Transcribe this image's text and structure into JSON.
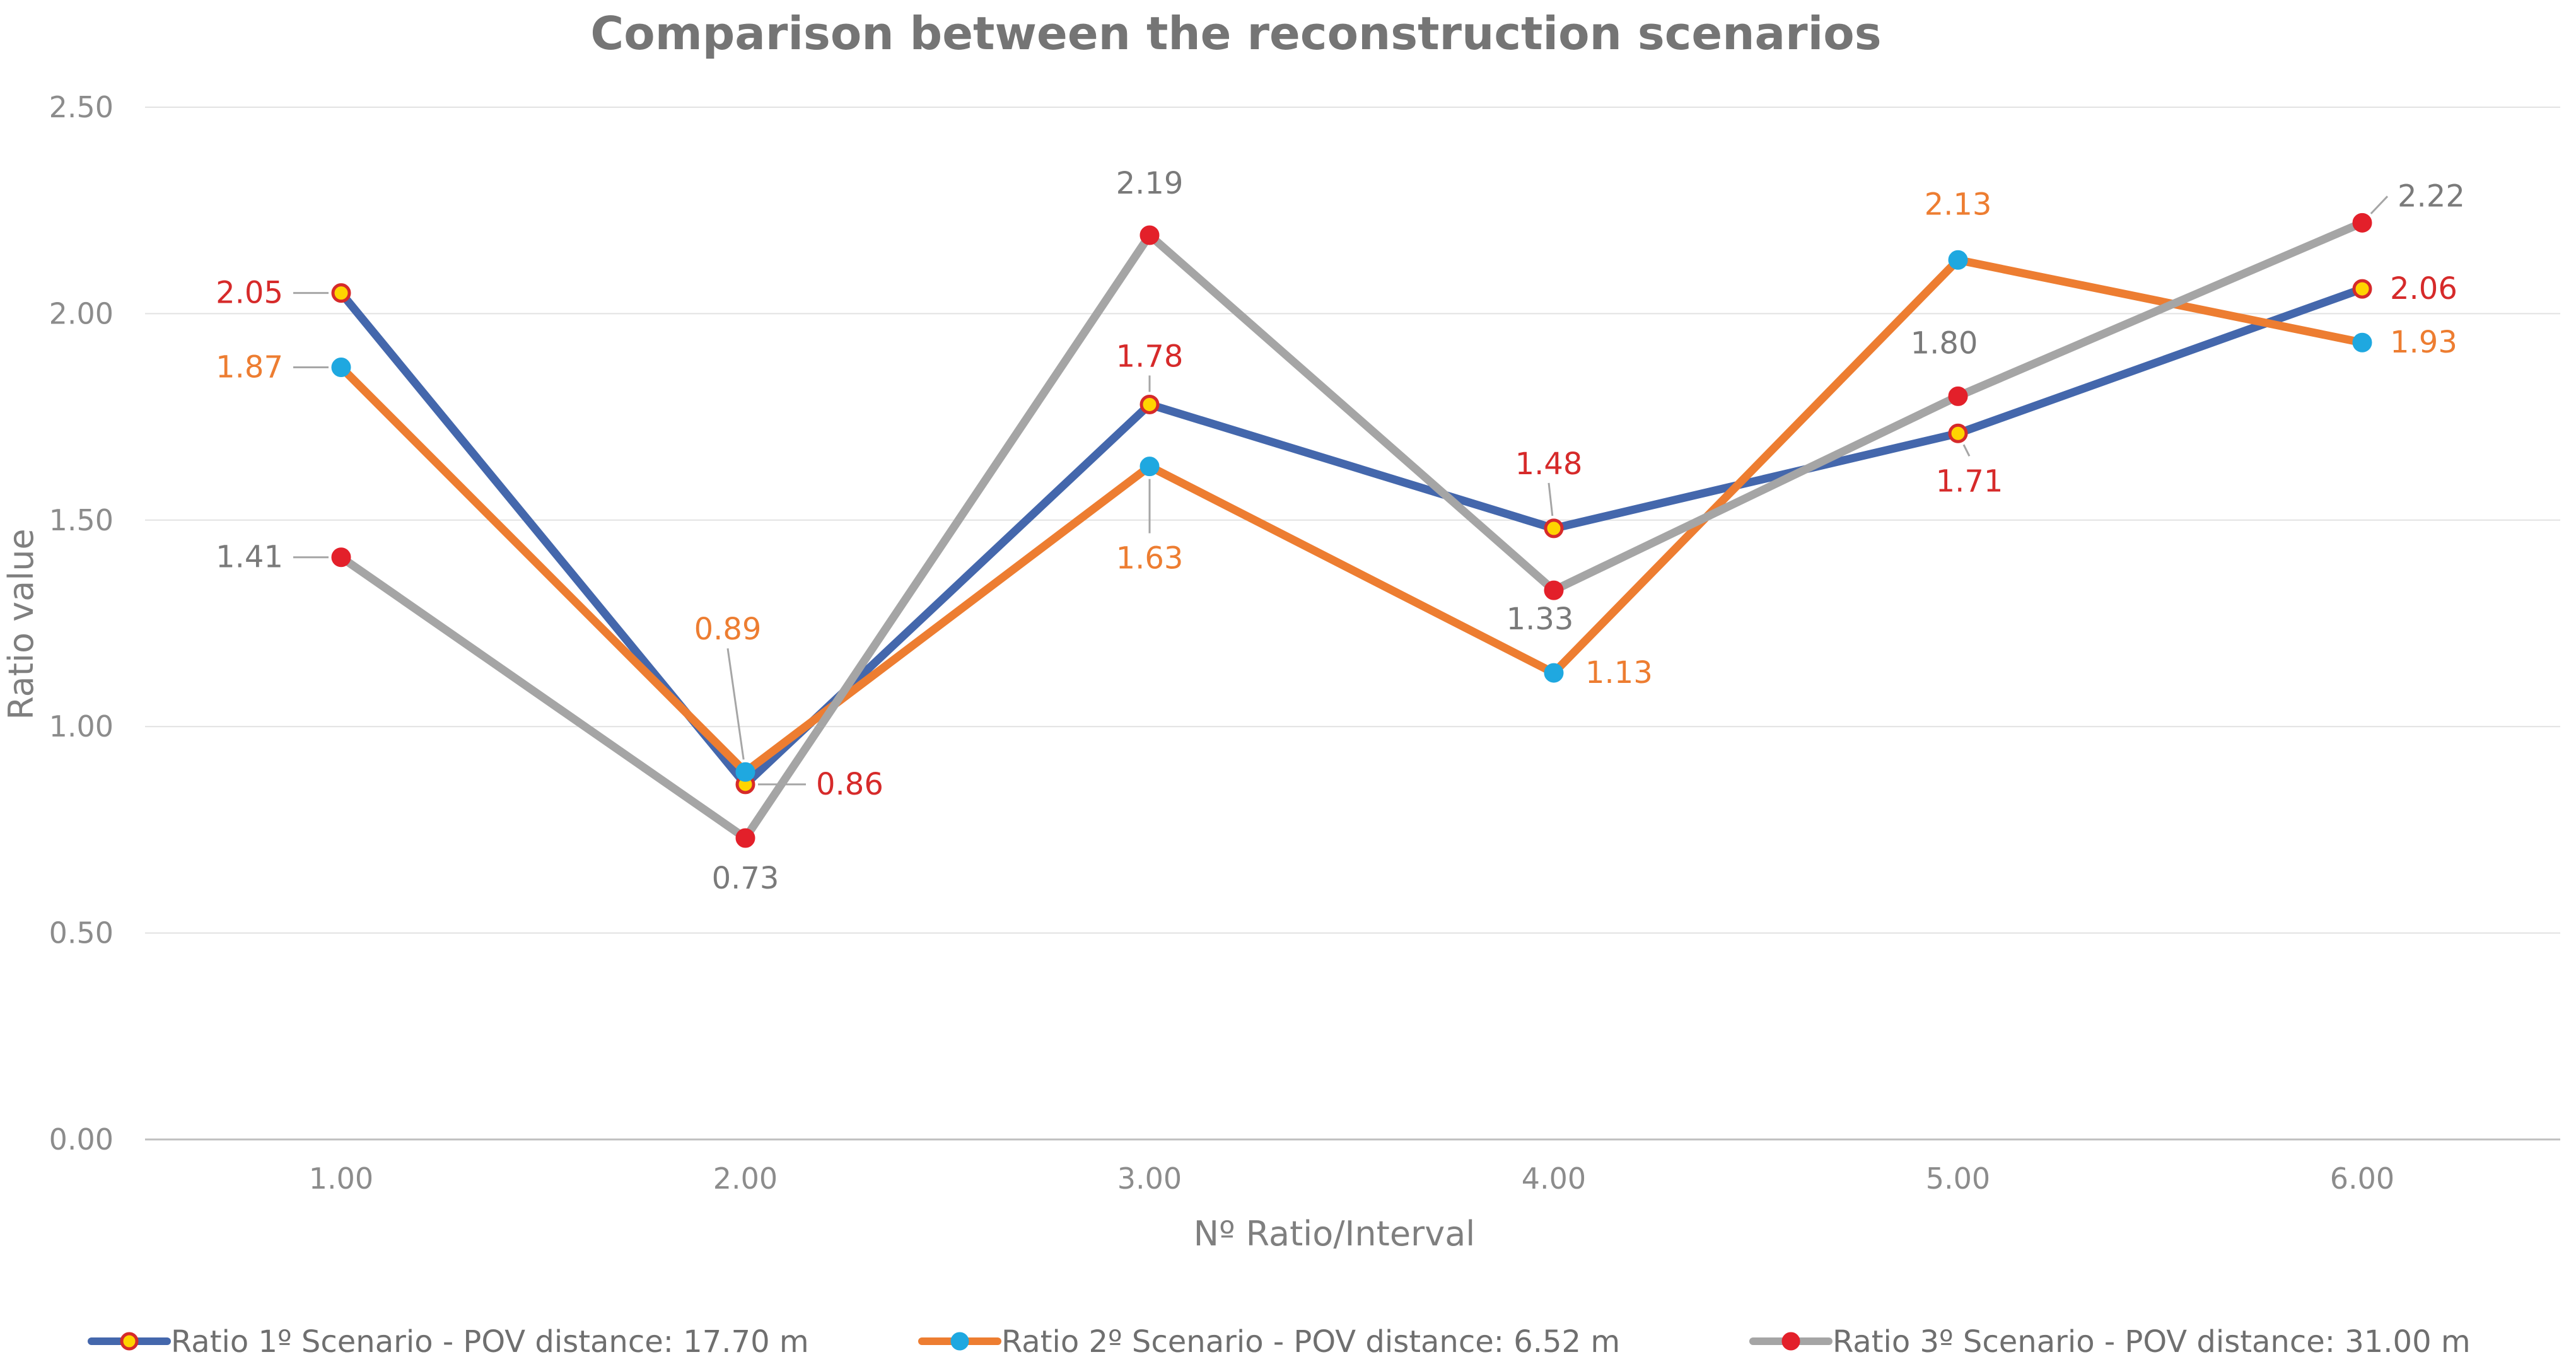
{
  "chart_data": {
    "type": "line",
    "title": "Comparison between the reconstruction scenarios",
    "xlabel": "Nº Ratio/Interval",
    "ylabel": "Ratio value",
    "x": [
      1,
      2,
      3,
      4,
      5,
      6
    ],
    "x_tick_labels": [
      "1.00",
      "2.00",
      "3.00",
      "4.00",
      "5.00",
      "6.00"
    ],
    "y_tick_labels": [
      "0.00",
      "0.50",
      "1.00",
      "1.50",
      "2.00",
      "2.50"
    ],
    "ylim": [
      0,
      2.5
    ],
    "grid": "horizontal",
    "legend_position": "bottom",
    "series": [
      {
        "name": "Ratio  1º Scenario - POV distance: 17.70 m",
        "values": [
          2.05,
          0.86,
          1.78,
          1.48,
          1.71,
          2.06
        ],
        "labels": [
          "2.05",
          "0.86",
          "1.78",
          "1.48",
          "1.71",
          "2.06"
        ],
        "line_color": "#4467ac",
        "marker_fill": "#ffd400",
        "marker_stroke": "#d62a2a",
        "label_color": "#d62a2a"
      },
      {
        "name": "Ratio  2º Scenario - POV distance: 6.52 m",
        "values": [
          1.87,
          0.89,
          1.63,
          1.13,
          2.13,
          1.93
        ],
        "labels": [
          "1.87",
          "0.89",
          "1.63",
          "1.13",
          "2.13",
          "1.93"
        ],
        "line_color": "#ed7d31",
        "marker_fill": "#1fa8e0",
        "marker_stroke": "#1fa8e0",
        "label_color": "#ed7d31"
      },
      {
        "name": "Ratio 3º Scenario - POV distance: 31.00 m",
        "values": [
          1.41,
          0.73,
          2.19,
          1.33,
          1.8,
          2.22
        ],
        "labels": [
          "1.41",
          "0.73",
          "2.19",
          "1.33",
          "1.80",
          "2.22"
        ],
        "line_color": "#a5a5a5",
        "marker_fill": "#e3202a",
        "marker_stroke": "#e3202a",
        "label_color": "#7a7a7a"
      }
    ]
  }
}
